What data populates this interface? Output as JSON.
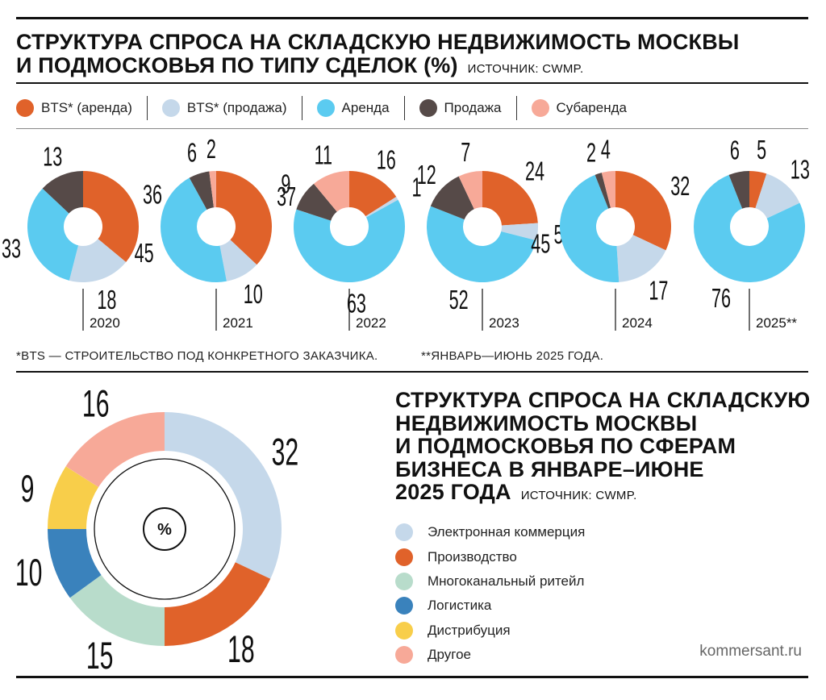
{
  "title1_line1": "СТРУКТУРА СПРОСА НА СКЛАДСКУЮ НЕДВИЖИМОСТЬ МОСКВЫ",
  "title1_line2": "И ПОДМОСКОВЬЯ ПО ТИПУ СДЕЛОК (%)",
  "source1": "ИСТОЧНИК: CWMP.",
  "footnote1": "*BTS — СТРОИТЕЛЬСТВО ПОД КОНКРЕТНОГО ЗАКАЗЧИКА.",
  "footnote2": "**ЯНВАРЬ—ИЮНЬ 2025 ГОДА.",
  "title2_lines": [
    "СТРУКТУРА СПРОСА НА СКЛАДСКУЮ",
    "НЕДВИЖИМОСТЬ МОСКВЫ",
    "И ПОДМОСКОВЬЯ ПО СФЕРАМ",
    "БИЗНЕСА В ЯНВАРЕ–ИЮНЕ",
    "2025 ГОДА"
  ],
  "source2": "ИСТОЧНИК: CWMP.",
  "percent_label": "%",
  "credit": "kommersant.ru",
  "chart_data": [
    {
      "type": "pie",
      "subtype": "donut",
      "title": "СТРУКТУРА СПРОСА НА СКЛАДСКУЮ НЕДВИЖИМОСТЬ МОСКВЫ И ПОДМОСКОВЬЯ ПО ТИПУ СДЕЛОК (%)",
      "series_legend": [
        {
          "key": "bts_rent",
          "label": "BTS* (аренда)",
          "color": "#e0622a"
        },
        {
          "key": "bts_sale",
          "label": "BTS* (продажа)",
          "color": "#c5d8ea"
        },
        {
          "key": "rent",
          "label": "Аренда",
          "color": "#5bcbf0"
        },
        {
          "key": "sale",
          "label": "Продажа",
          "color": "#564a48"
        },
        {
          "key": "sublease",
          "label": "Субаренда",
          "color": "#f7a998"
        }
      ],
      "legend_position": "top",
      "charts": [
        {
          "year": "2020",
          "values": {
            "bts_rent": 36,
            "bts_sale": 18,
            "rent": 33,
            "sale": 13
          }
        },
        {
          "year": "2021",
          "values": {
            "bts_rent": 37,
            "bts_sale": 10,
            "rent": 45,
            "sale": 6,
            "sublease": 2
          }
        },
        {
          "year": "2022",
          "values": {
            "bts_rent": 16,
            "bts_sale": 1,
            "rent": 63,
            "sale": 9,
            "sublease": 11
          }
        },
        {
          "year": "2023",
          "values": {
            "bts_rent": 24,
            "bts_sale": 5,
            "rent": 52,
            "sale": 12,
            "sublease": 7
          }
        },
        {
          "year": "2024",
          "values": {
            "bts_rent": 32,
            "bts_sale": 17,
            "rent": 45,
            "sale": 2,
            "sublease": 4
          }
        },
        {
          "year": "2025**",
          "values": {
            "bts_rent": 5,
            "bts_sale": 13,
            "rent": 76,
            "sale": 6
          }
        }
      ]
    },
    {
      "type": "pie",
      "subtype": "donut",
      "title": "СТРУКТУРА СПРОСА НА СКЛАДСКУЮ НЕДВИЖИМОСТЬ МОСКВЫ И ПОДМОСКОВЬЯ ПО СФЕРАМ БИЗНЕСА В ЯНВАРЕ–ИЮНЕ 2025 ГОДА",
      "unit": "%",
      "categories": [
        "Электронная коммерция",
        "Производство",
        "Многоканальный ритейл",
        "Логистика",
        "Дистрибуция",
        "Другое"
      ],
      "values": [
        32,
        18,
        15,
        10,
        9,
        16
      ],
      "colors": [
        "#c5d8ea",
        "#e0622a",
        "#b8dccb",
        "#3a82bc",
        "#f8ce4a",
        "#f7a998"
      ],
      "legend_position": "right"
    }
  ]
}
